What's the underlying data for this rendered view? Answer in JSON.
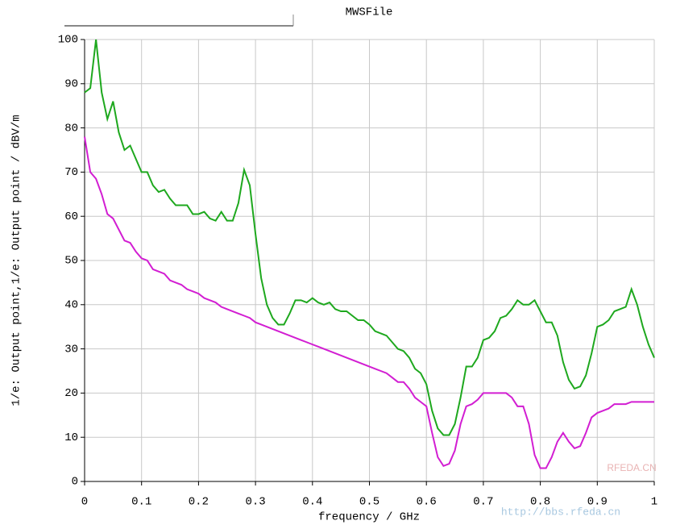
{
  "chart_data": {
    "type": "line",
    "title": "MWSFile",
    "xlabel": "frequency / GHz",
    "ylabel": "1/e: Output point,1/e: Output point / dBV/m",
    "watermark": [
      "RFEDA.CN",
      "http://bbs.rfeda.cn"
    ],
    "xlim": [
      0,
      1
    ],
    "ylim": [
      0,
      100
    ],
    "xticks": [
      0,
      0.1,
      0.2,
      0.3,
      0.4,
      0.5,
      0.6,
      0.7,
      0.8,
      0.9,
      1
    ],
    "yticks": [
      0,
      10,
      20,
      30,
      40,
      50,
      60,
      70,
      80,
      90,
      100
    ],
    "grid": true,
    "x": [
      0,
      0.01,
      0.02,
      0.03,
      0.04,
      0.05,
      0.06,
      0.07,
      0.08,
      0.09,
      0.1,
      0.11,
      0.12,
      0.13,
      0.14,
      0.15,
      0.16,
      0.17,
      0.18,
      0.19,
      0.2,
      0.21,
      0.22,
      0.23,
      0.24,
      0.25,
      0.26,
      0.27,
      0.28,
      0.29,
      0.3,
      0.31,
      0.32,
      0.33,
      0.34,
      0.35,
      0.36,
      0.37,
      0.38,
      0.39,
      0.4,
      0.41,
      0.42,
      0.43,
      0.44,
      0.45,
      0.46,
      0.47,
      0.48,
      0.49,
      0.5,
      0.51,
      0.52,
      0.53,
      0.54,
      0.55,
      0.56,
      0.57,
      0.58,
      0.59,
      0.6,
      0.61,
      0.62,
      0.63,
      0.64,
      0.65,
      0.66,
      0.67,
      0.68,
      0.69,
      0.7,
      0.71,
      0.72,
      0.73,
      0.74,
      0.75,
      0.76,
      0.77,
      0.78,
      0.79,
      0.8,
      0.81,
      0.82,
      0.83,
      0.84,
      0.85,
      0.86,
      0.87,
      0.88,
      0.89,
      0.9,
      0.91,
      0.92,
      0.93,
      0.94,
      0.95,
      0.96,
      0.97,
      0.98,
      0.99,
      1
    ],
    "series": [
      {
        "color": "#1ea81e",
        "values": [
          88,
          89,
          100,
          88,
          82,
          86,
          79,
          75,
          76,
          73,
          70,
          70,
          67,
          65.5,
          66,
          64,
          62.5,
          62.5,
          62.5,
          60.5,
          60.5,
          61,
          59.5,
          59,
          61,
          59,
          59,
          63,
          70.5,
          67,
          56,
          46,
          40,
          37,
          35.5,
          35.5,
          38,
          41,
          41,
          40.5,
          41.5,
          40.5,
          40,
          40.5,
          39,
          38.5,
          38.5,
          37.5,
          36.5,
          36.5,
          35.5,
          34,
          33.5,
          33,
          31.5,
          30,
          29.5,
          28,
          25.5,
          24.5,
          22,
          16,
          12,
          10.5,
          10.5,
          13,
          19,
          26,
          26,
          28,
          32,
          32.5,
          34,
          37,
          37.5,
          39,
          41,
          40,
          40,
          41,
          38.5,
          36,
          36,
          33,
          27,
          23,
          21,
          21.5,
          24,
          29,
          35,
          35.5,
          36.5,
          38.5,
          39,
          39.5,
          43.5,
          40,
          35,
          31,
          28
        ]
      },
      {
        "color": "#d21ed2",
        "values": [
          78,
          70,
          68.5,
          65,
          60.5,
          59.5,
          57,
          54.5,
          54,
          52,
          50.5,
          50,
          48,
          47.5,
          47,
          45.5,
          45,
          44.5,
          43.5,
          43,
          42.5,
          41.5,
          41,
          40.5,
          39.5,
          39,
          38.5,
          38,
          37.5,
          37,
          36,
          35.5,
          35,
          34.5,
          34,
          33.5,
          33,
          32.5,
          32,
          31.5,
          31,
          30.5,
          30,
          29.5,
          29,
          28.5,
          28,
          27.5,
          27,
          26.5,
          26,
          25.5,
          25,
          24.5,
          23.5,
          22.5,
          22.5,
          21,
          19,
          18,
          17,
          11,
          5.5,
          3.5,
          4,
          7,
          13,
          17,
          17.5,
          18.5,
          20,
          20,
          20,
          20,
          20,
          19,
          17,
          17,
          13,
          6,
          3,
          3,
          5.5,
          9,
          11,
          9,
          7.5,
          8,
          11,
          14.5,
          15.5,
          16,
          16.5,
          17.5,
          17.5,
          17.5,
          18,
          18,
          18,
          18,
          18
        ]
      }
    ]
  }
}
